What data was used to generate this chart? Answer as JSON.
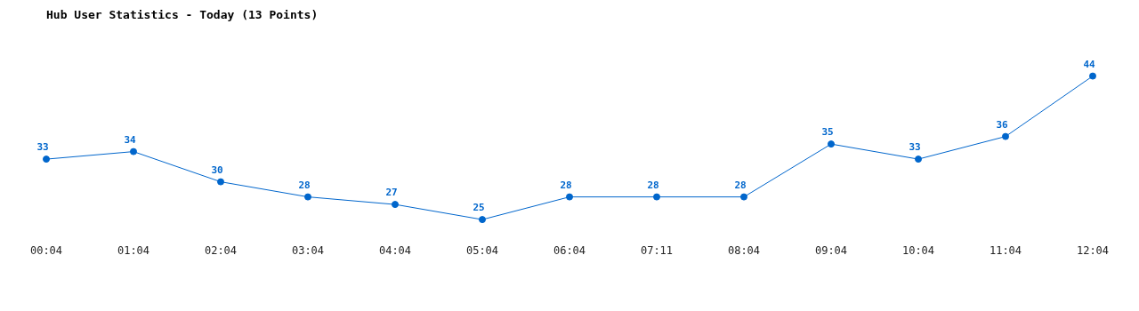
{
  "chart_data": {
    "type": "line",
    "title": "Hub User Statistics - Today (13 Points)",
    "categories": [
      "00:04",
      "01:04",
      "02:04",
      "03:04",
      "04:04",
      "05:04",
      "06:04",
      "07:11",
      "08:04",
      "09:04",
      "10:04",
      "11:04",
      "12:04"
    ],
    "series": [
      {
        "color": "#0066cc",
        "values": [
          33,
          34,
          30,
          28,
          27,
          25,
          28,
          28,
          28,
          35,
          33,
          36,
          44
        ]
      }
    ],
    "tick_labels": "x",
    "grid": false,
    "legend": false,
    "marker": "circle",
    "line_style": "solid",
    "data_labels": true
  }
}
